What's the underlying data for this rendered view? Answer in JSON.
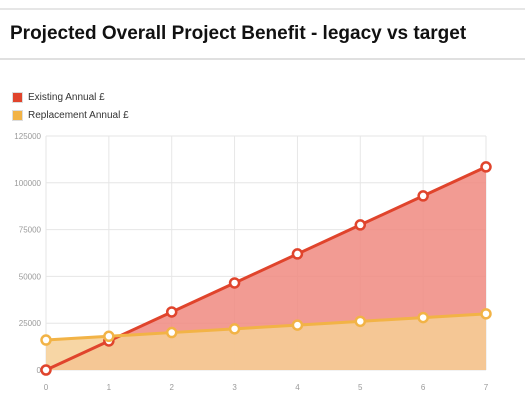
{
  "page": {
    "title": "Projected Overall Project Benefit - legacy vs target"
  },
  "chart_data": {
    "type": "area",
    "x": [
      0,
      1,
      2,
      3,
      4,
      5,
      6,
      7
    ],
    "xlim": [
      0,
      7
    ],
    "ylim": [
      0,
      125000
    ],
    "yticks": [
      0,
      25000,
      50000,
      75000,
      100000,
      125000
    ],
    "grid": true,
    "legend_position": "top-left",
    "series": [
      {
        "name": "Existing Annual £",
        "color": "#e0442c",
        "fill": "#f08a80",
        "values": [
          0,
          15500,
          31000,
          46500,
          62000,
          77500,
          93000,
          108500
        ]
      },
      {
        "name": "Replacement Annual £",
        "color": "#f2b346",
        "fill": "#f6cf95",
        "values": [
          16000,
          18000,
          20000,
          22000,
          24000,
          26000,
          28000,
          30000
        ]
      }
    ]
  }
}
